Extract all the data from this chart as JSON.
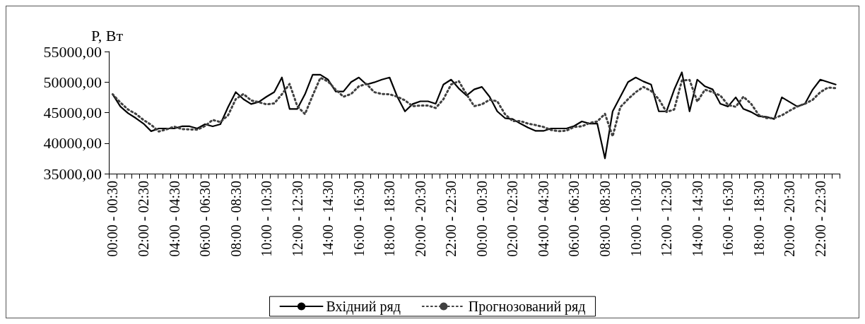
{
  "chart_data": {
    "type": "line",
    "ylabel": "P, Вт",
    "categories": [
      "00:00 - 00:30",
      null,
      null,
      null,
      "02:00 - 02:30",
      null,
      null,
      null,
      "04:00 - 04:30",
      null,
      null,
      null,
      "06:00 - 06:30",
      null,
      null,
      null,
      "08:00 - 08:30",
      null,
      null,
      null,
      "10:00 - 10:30",
      null,
      null,
      null,
      "12:00 - 12:30",
      null,
      null,
      null,
      "14:00 - 14:30",
      null,
      null,
      null,
      "16:00 - 16:30",
      null,
      null,
      null,
      "18:00 - 18:30",
      null,
      null,
      null,
      "20:00 - 20:30",
      null,
      null,
      null,
      "22:00 - 22:30",
      null,
      null,
      null,
      "00:00 - 00:30",
      null,
      null,
      null,
      "02:00 - 02:30",
      null,
      null,
      null,
      "04:00 - 04:30",
      null,
      null,
      null,
      "06:00 - 06:30",
      null,
      null,
      null,
      "08:00 - 08:30",
      null,
      null,
      null,
      "10:00 - 10:30",
      null,
      null,
      null,
      "12:00 - 12:30",
      null,
      null,
      null,
      "14:00 - 14:30",
      null,
      null,
      null,
      "16:00 - 16:30",
      null,
      null,
      null,
      "18:00 - 18:30",
      null,
      null,
      null,
      "20:00 - 20:30",
      null,
      null,
      null,
      "22:00 - 22:30",
      null,
      null
    ],
    "series": [
      {
        "name": "Вхідний ряд",
        "color": "#000000",
        "line_style": "solid",
        "values": [
          48000,
          46000,
          44900,
          44100,
          43200,
          41950,
          42400,
          42400,
          42400,
          42750,
          42750,
          42400,
          43100,
          42750,
          43100,
          45900,
          48350,
          47200,
          46400,
          46750,
          47600,
          48350,
          50750,
          45600,
          45600,
          48000,
          51200,
          51200,
          50400,
          48450,
          48450,
          50000,
          50750,
          49600,
          49950,
          50400,
          50750,
          47600,
          45200,
          46400,
          46850,
          46850,
          46450,
          49600,
          50400,
          48950,
          47800,
          48800,
          49200,
          47600,
          45200,
          44100,
          43950,
          43200,
          42550,
          42000,
          42000,
          42400,
          42400,
          42400,
          42800,
          43550,
          43200,
          43200,
          37500,
          45200,
          47600,
          50000,
          50750,
          50100,
          49600,
          45200,
          45200,
          48750,
          51600,
          45200,
          50400,
          49300,
          48800,
          46450,
          46000,
          47500,
          45600,
          45100,
          44400,
          44300,
          43950,
          47500,
          46750,
          46000,
          46450,
          48750,
          50400,
          50000,
          49600
        ]
      },
      {
        "name": "Прогнозований ряд",
        "color": "#404040",
        "line_style": "dotted",
        "values": [
          48000,
          46650,
          45500,
          44800,
          43800,
          43000,
          41900,
          42250,
          42700,
          42300,
          42250,
          42200,
          42800,
          43800,
          43450,
          44550,
          47200,
          48050,
          47000,
          46700,
          46350,
          46500,
          48000,
          49700,
          46050,
          44750,
          47800,
          50700,
          50100,
          48750,
          47600,
          48050,
          49300,
          49700,
          48350,
          48050,
          48000,
          47600,
          47000,
          46050,
          46150,
          46150,
          45750,
          47200,
          49600,
          50150,
          48000,
          46050,
          46350,
          47100,
          46850,
          44750,
          43600,
          43600,
          43200,
          42950,
          42650,
          42150,
          41950,
          42050,
          42650,
          42750,
          43300,
          43550,
          44800,
          41100,
          45900,
          47200,
          48350,
          49200,
          48550,
          47200,
          45100,
          45500,
          50250,
          50350,
          46800,
          48750,
          48350,
          47800,
          46250,
          45950,
          47600,
          46450,
          44600,
          44100,
          44100,
          44550,
          45300,
          46000,
          46450,
          47100,
          48350,
          49100,
          49000
        ]
      }
    ],
    "ylim": [
      35000,
      55000
    ],
    "yticks": [
      {
        "value": 35000,
        "label": "35000,00"
      },
      {
        "value": 40000,
        "label": "40000,00"
      },
      {
        "value": 45000,
        "label": "45000,00"
      },
      {
        "value": 50000,
        "label": "50000,00"
      },
      {
        "value": 55000,
        "label": "55000,00"
      }
    ],
    "grid": false,
    "legend": "bottom",
    "marker": "none"
  }
}
